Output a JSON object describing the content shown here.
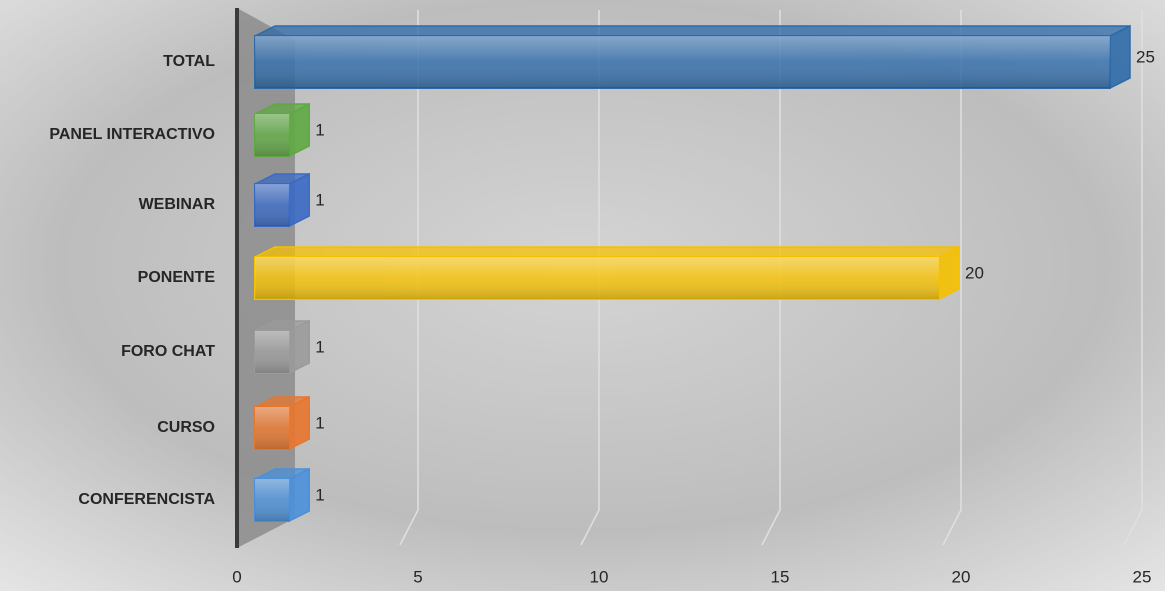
{
  "chart_data": {
    "type": "bar",
    "orientation": "horizontal",
    "categories": [
      "TOTAL",
      "PANEL INTERACTIVO",
      "WEBINAR",
      "PONENTE",
      "FORO CHAT",
      "CURSO",
      "CONFERENCISTA"
    ],
    "values": [
      25,
      1,
      1,
      20,
      1,
      1,
      1
    ],
    "colors": [
      "#2e6aa8",
      "#5fa843",
      "#3a69c4",
      "#f5c000",
      "#9a9a9a",
      "#e8762c",
      "#4a90d9"
    ],
    "xlim": [
      0,
      25
    ],
    "xticks": [
      0,
      5,
      10,
      15,
      20,
      25
    ],
    "grid": true
  }
}
